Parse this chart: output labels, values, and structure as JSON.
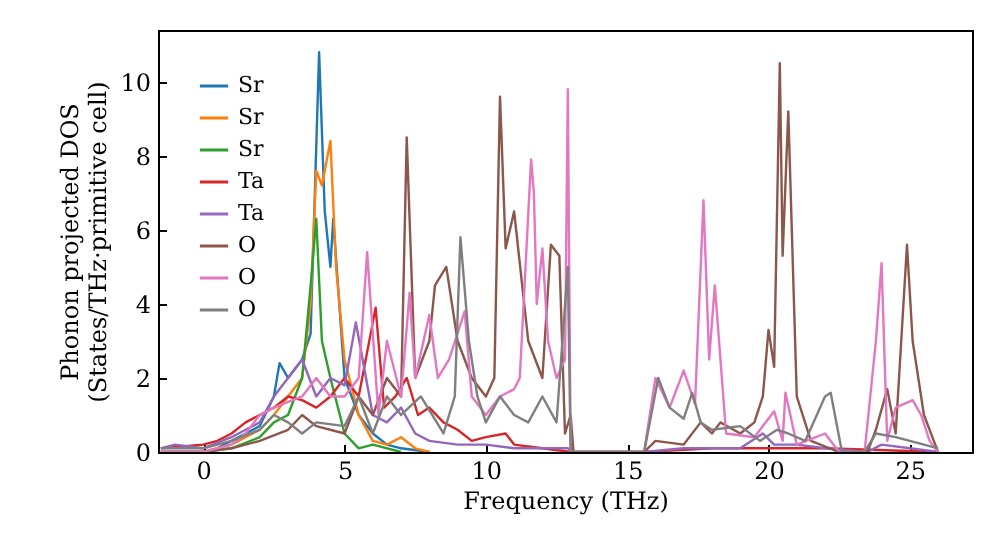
{
  "chart_data": {
    "type": "line",
    "xlabel": "Frequency (THz)",
    "ylabel": "Phonon projected DOS\n(States/THz·primitive cell)",
    "xlim": [
      -1.6,
      27.2
    ],
    "ylim": [
      0,
      11.4
    ],
    "xticks": [
      0,
      5,
      10,
      15,
      20,
      25
    ],
    "yticks": [
      0,
      2,
      4,
      6,
      8,
      {
        "value": 10,
        "label": "10"
      }
    ],
    "grid": false,
    "legend": "top left",
    "marker": "none",
    "line_style": "solid",
    "series": [
      {
        "name": "Sr",
        "color": "#1f77b4",
        "x": [
          -1.5,
          0,
          0.5,
          1,
          1.5,
          2,
          2.5,
          2.7,
          3,
          3.5,
          3.8,
          4.1,
          4.3,
          4.5,
          4.6,
          5,
          5.5,
          6,
          6.5,
          7,
          8
        ],
        "values": [
          0,
          0,
          0.1,
          0.3,
          0.5,
          0.7,
          1.5,
          2.4,
          2,
          2.5,
          3.2,
          10.8,
          6.5,
          5,
          6.3,
          2,
          1,
          0.5,
          0.2,
          0.1,
          0
        ]
      },
      {
        "name": "Sr",
        "color": "#ff7f0e",
        "x": [
          -1.5,
          0,
          1,
          2,
          2.5,
          3,
          3.5,
          3.8,
          4,
          4.2,
          4.5,
          4.7,
          5,
          5.5,
          6,
          6.5,
          7,
          7.5,
          8
        ],
        "values": [
          0,
          0,
          0.2,
          0.6,
          1,
          1.5,
          2,
          4,
          7.6,
          7.2,
          8.4,
          5,
          2.5,
          1,
          0.3,
          0.2,
          0.4,
          0.1,
          0
        ]
      },
      {
        "name": "Sr",
        "color": "#2ca02c",
        "x": [
          -1.5,
          0,
          1,
          2,
          2.5,
          3,
          3.5,
          3.8,
          4,
          4.2,
          4.5,
          5,
          5.5,
          6,
          7
        ],
        "values": [
          0,
          0,
          0.1,
          0.4,
          0.8,
          1,
          2,
          4.5,
          6.3,
          3,
          2,
          0.5,
          0.1,
          0.2,
          0
        ]
      },
      {
        "name": "Ta",
        "color": "#d62728",
        "x": [
          -1.5,
          0,
          0.5,
          1,
          1.5,
          2,
          2.5,
          3,
          3.5,
          4,
          4.5,
          5,
          5.5,
          6.1,
          6.4,
          6.8,
          7.2,
          7.6,
          8,
          8.5,
          9,
          9.5,
          10,
          10.7,
          11,
          12,
          13,
          13.1,
          15.6,
          18,
          20,
          22,
          26
        ],
        "values": [
          0.1,
          0.2,
          0.3,
          0.5,
          0.8,
          1,
          1.2,
          1.5,
          1.4,
          1.2,
          1.5,
          2,
          1.5,
          3.9,
          1.2,
          1.5,
          2,
          1,
          1.2,
          0.8,
          0.6,
          0.3,
          0.4,
          0.5,
          0.2,
          0.1,
          0,
          0,
          0,
          0.1,
          0.1,
          0.1,
          0
        ]
      },
      {
        "name": "Ta",
        "color": "#9467bd",
        "x": [
          -1.5,
          -1,
          0,
          1,
          1.5,
          2,
          2.5,
          3,
          3.5,
          4,
          4.5,
          5,
          5.4,
          6,
          6.5,
          7,
          7.5,
          8,
          9,
          10,
          11,
          12,
          12.9,
          13.1,
          15.6,
          17,
          19,
          19.8,
          20.2,
          21,
          22,
          23.5,
          24,
          25,
          26
        ],
        "values": [
          0.1,
          0.2,
          0.1,
          0.4,
          0.6,
          0.8,
          1.5,
          2,
          2.5,
          1.5,
          2,
          1.8,
          3.5,
          1,
          0.8,
          1.2,
          0.5,
          0.3,
          0.2,
          0.2,
          0.1,
          0.1,
          0.1,
          0,
          0,
          0.1,
          0.1,
          0.5,
          0.2,
          0.2,
          0.1,
          0,
          0.2,
          0.1,
          0
        ]
      },
      {
        "name": "O",
        "color": "#8c564b",
        "x": [
          -1.5,
          0,
          1,
          2,
          3,
          3.5,
          4,
          5,
          5.5,
          6,
          6.5,
          7,
          7.2,
          7.5,
          8,
          8.2,
          8.6,
          9,
          9.5,
          10,
          10.3,
          10.5,
          10.7,
          11,
          11.5,
          12,
          12.3,
          12.6,
          12.8,
          13,
          13.1,
          15.6,
          16,
          17,
          17.6,
          18,
          18.3,
          19,
          19.5,
          19.8,
          20,
          20.2,
          20.4,
          20.5,
          20.7,
          21,
          21.5,
          22.5,
          23.5,
          23.8,
          24.2,
          24.5,
          24.9,
          25.1,
          25.5,
          25.9,
          26
        ],
        "values": [
          0,
          0,
          0.1,
          0.3,
          0.6,
          1,
          0.7,
          0.5,
          1.5,
          1,
          2,
          1.5,
          8.5,
          2,
          3,
          4.5,
          5,
          3,
          2,
          1.5,
          2,
          9.6,
          5.5,
          6.5,
          3,
          2,
          5.6,
          5.3,
          0.5,
          1,
          0,
          0,
          0.3,
          0.2,
          0.8,
          0.5,
          0.8,
          0.5,
          0.8,
          1.5,
          3.3,
          2.3,
          10.5,
          5.3,
          9.2,
          1.5,
          0.3,
          0,
          0,
          0.6,
          1.7,
          0.5,
          5.6,
          3,
          1,
          0.2,
          0
        ]
      },
      {
        "name": "O",
        "color": "#e377c2",
        "x": [
          -1.5,
          0,
          1,
          1.5,
          2,
          2.5,
          3.5,
          4,
          4.5,
          5,
          5.5,
          5.8,
          6.2,
          6.5,
          7,
          7.3,
          7.5,
          8,
          8.3,
          8.7,
          9.25,
          9.5,
          10,
          10.5,
          11,
          11.2,
          11.6,
          11.7,
          11.8,
          12,
          12.2,
          12.5,
          12.8,
          12.9,
          13,
          15.6,
          16,
          16.5,
          17,
          17.4,
          17.7,
          17.9,
          18.1,
          18.5,
          19.5,
          20.2,
          20.5,
          20.6,
          21,
          22,
          22.5,
          23.4,
          23.8,
          24,
          24.2,
          24.5,
          25.1,
          25.4,
          25.7,
          26
        ],
        "values": [
          0,
          0,
          0.2,
          0.5,
          1,
          1.2,
          1.5,
          2,
          1.5,
          1.5,
          2,
          5.4,
          1,
          3,
          1.5,
          4.3,
          2,
          3.7,
          2,
          2.5,
          3.8,
          1.5,
          1,
          1.5,
          1.7,
          2,
          7.9,
          7,
          4,
          5.5,
          3,
          2,
          2.5,
          9.8,
          0,
          0,
          2,
          1.2,
          2.2,
          1.3,
          6.8,
          2.5,
          4.5,
          0.5,
          0.4,
          1.1,
          0.3,
          1.6,
          0.2,
          0.5,
          0,
          0,
          3,
          5.1,
          0.3,
          1.2,
          1.4,
          1,
          0.3,
          0
        ]
      },
      {
        "name": "O",
        "color": "#7f7f7f",
        "x": [
          -1.5,
          -1,
          0,
          1,
          2,
          2.5,
          3,
          3.5,
          4,
          5,
          5.5,
          6,
          6.5,
          7,
          7.7,
          8.5,
          8.9,
          9.1,
          9.4,
          9.7,
          10,
          10.5,
          11,
          11.5,
          12,
          12.5,
          12.9,
          13,
          15.6,
          16.1,
          16.5,
          17,
          17.3,
          17.6,
          18,
          19,
          19.7,
          20.3,
          20.7,
          21.3,
          22,
          22.2,
          22.6,
          23.4,
          23.8,
          24.5,
          25.5,
          26
        ],
        "values": [
          0.1,
          0.1,
          0.1,
          0.3,
          0.6,
          1,
          0.8,
          0.5,
          0.8,
          0.7,
          1.5,
          0.5,
          1.5,
          1,
          1.5,
          0.5,
          1.5,
          5.8,
          3,
          1.5,
          0.8,
          1.5,
          1,
          0.8,
          1.5,
          0.8,
          5,
          0,
          0,
          2,
          1.2,
          0.9,
          1.6,
          0.8,
          0.6,
          0.7,
          0.3,
          0.6,
          0.5,
          0.3,
          1.5,
          1.6,
          0,
          0,
          0.5,
          0.4,
          0.2,
          0.1
        ]
      }
    ]
  }
}
